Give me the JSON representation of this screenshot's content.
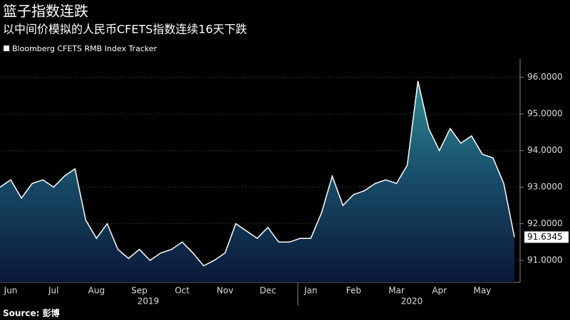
{
  "chart_data": {
    "type": "area",
    "title": "篮子指数连跌",
    "subtitle": "以中间价模拟的人民币CFETS指数连续16天下跌",
    "source": "Source: 彭博",
    "year_labels": [
      "2019",
      "2020"
    ],
    "categories": [
      null,
      "Jun",
      null,
      null,
      null,
      "Jul",
      null,
      null,
      null,
      "Aug",
      null,
      null,
      null,
      "Sep",
      null,
      null,
      null,
      "Oct",
      null,
      null,
      null,
      "Nov",
      null,
      null,
      null,
      "Dec",
      null,
      null,
      null,
      "Jan",
      null,
      null,
      null,
      "Feb",
      null,
      null,
      null,
      "Mar",
      null,
      null,
      null,
      "Apr",
      null,
      null,
      null,
      "May",
      null,
      null,
      null
    ],
    "series": [
      {
        "name": "Bloomberg CFETS RMB Index Tracker",
        "color": "#ffffff",
        "values": [
          93.0,
          93.2,
          92.7,
          93.1,
          93.2,
          93.0,
          93.3,
          93.5,
          92.1,
          91.6,
          92.0,
          91.3,
          91.05,
          91.3,
          91.0,
          91.2,
          91.3,
          91.5,
          91.2,
          90.85,
          91.0,
          91.2,
          92.0,
          91.8,
          91.6,
          91.9,
          91.5,
          91.5,
          91.6,
          91.6,
          92.3,
          93.3,
          92.5,
          92.8,
          92.9,
          93.1,
          93.2,
          93.1,
          93.6,
          95.9,
          94.6,
          94.0,
          94.6,
          94.2,
          94.4,
          93.9,
          93.8,
          93.1,
          91.6345
        ]
      }
    ],
    "ylim": [
      90.4,
      96.5
    ],
    "yticks": [
      {
        "value": 91,
        "label": "91.0000"
      },
      {
        "value": 92,
        "label": "92.0000"
      },
      {
        "value": 93,
        "label": "93.0000"
      },
      {
        "value": 94,
        "label": "94.0000"
      },
      {
        "value": 95,
        "label": "95.0000"
      },
      {
        "value": 96,
        "label": "96.0000"
      }
    ],
    "grid": true
  }
}
